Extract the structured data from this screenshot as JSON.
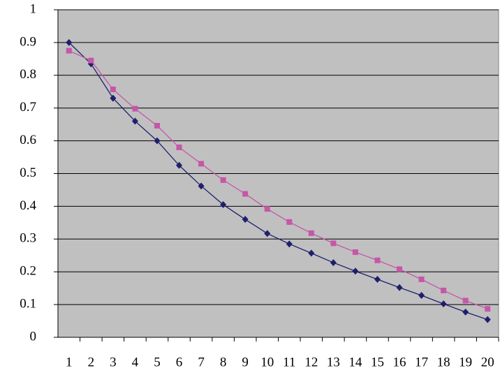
{
  "chart_data": {
    "type": "line",
    "categories": [
      "1",
      "2",
      "3",
      "4",
      "5",
      "6",
      "7",
      "8",
      "9",
      "10",
      "11",
      "12",
      "13",
      "14",
      "15",
      "16",
      "17",
      "18",
      "19",
      "20"
    ],
    "series": [
      {
        "color": "#1f1f6e",
        "marker": "diamond",
        "values": [
          0.9,
          0.835,
          0.73,
          0.66,
          0.6,
          0.525,
          0.462,
          0.405,
          0.36,
          0.317,
          0.285,
          0.257,
          0.228,
          0.202,
          0.177,
          0.152,
          0.128,
          0.102,
          0.077,
          0.054
        ]
      },
      {
        "color": "#c657a8",
        "marker": "square",
        "values": [
          0.875,
          0.845,
          0.757,
          0.698,
          0.646,
          0.58,
          0.53,
          0.48,
          0.438,
          0.392,
          0.352,
          0.318,
          0.287,
          0.26,
          0.235,
          0.208,
          0.177,
          0.143,
          0.112,
          0.087
        ]
      }
    ],
    "ylim": [
      0,
      1
    ],
    "yticks": [
      0,
      0.1,
      0.2,
      0.3,
      0.4,
      0.5,
      0.6,
      0.7,
      0.8,
      0.9,
      1
    ],
    "grid": true,
    "plot_background": "#c0c0c0"
  }
}
